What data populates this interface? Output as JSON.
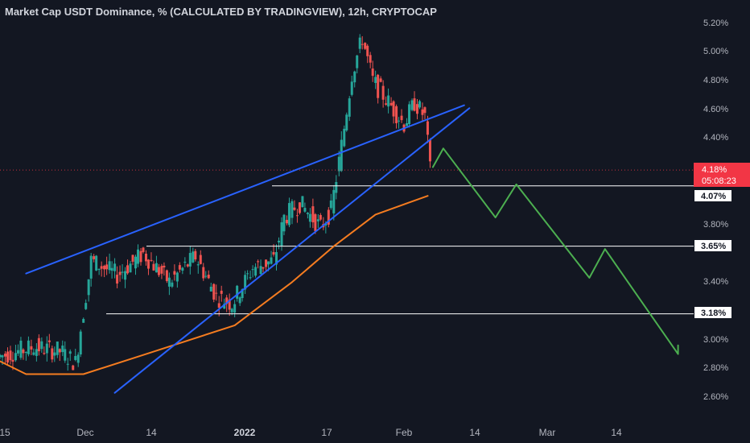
{
  "title": "Market Cap USDT Dominance, % (CALCULATED BY TRADINGVIEW), 12h, CRYPTOCAP",
  "colors": {
    "background": "#131722",
    "up": "#26a69a",
    "down": "#ef5350",
    "trendline": "#2962ff",
    "ma": "#f57c20",
    "projection": "#4caf50",
    "level": "#ffffff",
    "last_price": "#f23645"
  },
  "price_axis": {
    "ticks": [
      "5.20%",
      "5.00%",
      "4.80%",
      "4.60%",
      "4.40%",
      "3.80%",
      "3.40%",
      "3.00%",
      "2.80%",
      "2.60%"
    ]
  },
  "time_axis": {
    "labels": [
      {
        "text": "15",
        "bold": false
      },
      {
        "text": "Dec",
        "bold": false
      },
      {
        "text": "14",
        "bold": false
      },
      {
        "text": "2022",
        "bold": true
      },
      {
        "text": "17",
        "bold": false
      },
      {
        "text": "Feb",
        "bold": false
      },
      {
        "text": "14",
        "bold": false
      },
      {
        "text": "Mar",
        "bold": false
      },
      {
        "text": "14",
        "bold": false
      }
    ]
  },
  "last_price": {
    "value": "4.18%",
    "countdown": "05:08:23"
  },
  "levels": [
    {
      "label": "4.07%",
      "value": 4.07
    },
    {
      "label": "3.65%",
      "value": 3.65
    },
    {
      "label": "3.18%",
      "value": 3.18
    }
  ],
  "chart_data": {
    "type": "candlestick",
    "title": "Market Cap USDT Dominance, % (CALCULATED BY TRADINGVIEW), 12h, CRYPTOCAP",
    "x_range": [
      "2021-11-15",
      "2022-03-28"
    ],
    "y_range": [
      2.5,
      5.3
    ],
    "series": [
      {
        "type": "candlestick",
        "approx_close_points": [
          {
            "x": "2021-11-15",
            "y": 2.88
          },
          {
            "x": "2021-11-22",
            "y": 2.95
          },
          {
            "x": "2021-11-27",
            "y": 2.92
          },
          {
            "x": "2021-11-30",
            "y": 2.84
          },
          {
            "x": "2021-12-03",
            "y": 3.55
          },
          {
            "x": "2021-12-08",
            "y": 3.45
          },
          {
            "x": "2021-12-13",
            "y": 3.6
          },
          {
            "x": "2021-12-18",
            "y": 3.4
          },
          {
            "x": "2021-12-23",
            "y": 3.58
          },
          {
            "x": "2021-12-27",
            "y": 3.3
          },
          {
            "x": "2021-12-30",
            "y": 3.25
          },
          {
            "x": "2022-01-03",
            "y": 3.5
          },
          {
            "x": "2022-01-07",
            "y": 3.55
          },
          {
            "x": "2022-01-09",
            "y": 3.85
          },
          {
            "x": "2022-01-12",
            "y": 3.95
          },
          {
            "x": "2022-01-16",
            "y": 3.78
          },
          {
            "x": "2022-01-18",
            "y": 3.9
          },
          {
            "x": "2022-01-20",
            "y": 4.35
          },
          {
            "x": "2022-01-22",
            "y": 4.85
          },
          {
            "x": "2022-01-24",
            "y": 5.1
          },
          {
            "x": "2022-01-26",
            "y": 4.8
          },
          {
            "x": "2022-01-29",
            "y": 4.65
          },
          {
            "x": "2022-02-01",
            "y": 4.5
          },
          {
            "x": "2022-02-03",
            "y": 4.65
          },
          {
            "x": "2022-02-05",
            "y": 4.55
          },
          {
            "x": "2022-02-06",
            "y": 4.18
          }
        ]
      },
      {
        "name": "moving average",
        "type": "line",
        "points": [
          {
            "x": "2021-11-15",
            "y": 2.85
          },
          {
            "x": "2021-11-20",
            "y": 2.76
          },
          {
            "x": "2021-12-01",
            "y": 2.76
          },
          {
            "x": "2021-12-13",
            "y": 2.9
          },
          {
            "x": "2021-12-30",
            "y": 3.1
          },
          {
            "x": "2022-01-10",
            "y": 3.4
          },
          {
            "x": "2022-01-18",
            "y": 3.65
          },
          {
            "x": "2022-01-26",
            "y": 3.87
          },
          {
            "x": "2022-02-05",
            "y": 4.0
          }
        ]
      },
      {
        "name": "upper trendline",
        "type": "line",
        "points": [
          {
            "x": "2021-11-20",
            "y": 3.46
          },
          {
            "x": "2022-02-12",
            "y": 4.63
          }
        ]
      },
      {
        "name": "lower trendline",
        "type": "line",
        "points": [
          {
            "x": "2021-12-07",
            "y": 2.63
          },
          {
            "x": "2022-02-13",
            "y": 4.61
          }
        ]
      },
      {
        "name": "projected path",
        "type": "line",
        "points": [
          {
            "x": "2022-02-06",
            "y": 4.2
          },
          {
            "x": "2022-02-08",
            "y": 4.33
          },
          {
            "x": "2022-02-18",
            "y": 3.85
          },
          {
            "x": "2022-02-22",
            "y": 4.08
          },
          {
            "x": "2022-03-08",
            "y": 3.43
          },
          {
            "x": "2022-03-11",
            "y": 3.63
          },
          {
            "x": "2022-03-25",
            "y": 2.9
          },
          {
            "x": "2022-03-25",
            "y": 2.96
          }
        ]
      }
    ]
  }
}
